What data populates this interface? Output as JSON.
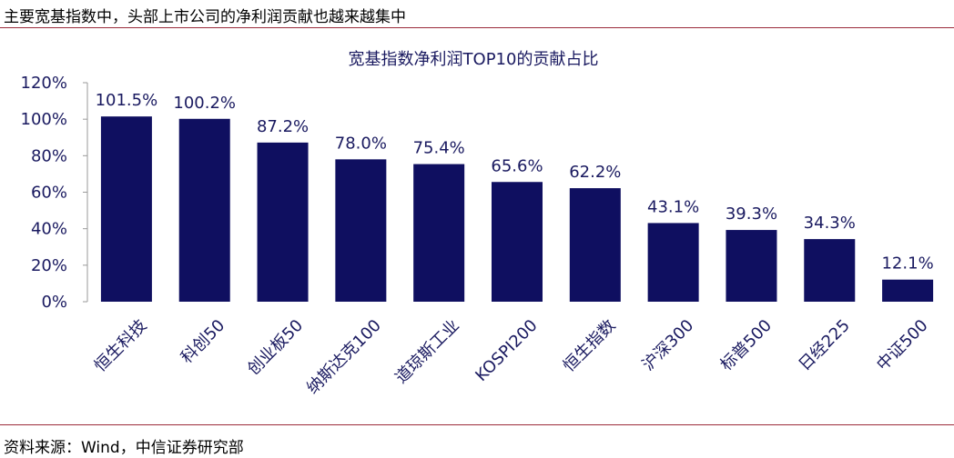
{
  "header": {
    "title": "主要宽基指数中，头部上市公司的净利润贡献也越来越集中"
  },
  "footer": {
    "source": "资料来源：Wind，中信证券研究部"
  },
  "colors": {
    "bar": "#0f0f60",
    "text": "#1a1a60",
    "rule": "#9b2b3a"
  },
  "chart_data": {
    "type": "bar",
    "title": "宽基指数净利润TOP10的贡献占比",
    "categories": [
      "恒生科技",
      "科创50",
      "创业板50",
      "纳斯达克100",
      "道琼斯工业",
      "KOSPI200",
      "恒生指数",
      "沪深300",
      "标普500",
      "日经225",
      "中证500"
    ],
    "values": [
      101.5,
      100.2,
      87.2,
      78.0,
      75.4,
      65.6,
      62.2,
      43.1,
      39.3,
      34.3,
      12.1
    ],
    "value_labels": [
      "101.5%",
      "100.2%",
      "87.2%",
      "78.0%",
      "75.4%",
      "65.6%",
      "62.2%",
      "43.1%",
      "39.3%",
      "34.3%",
      "12.1%"
    ],
    "yticks": [
      "0%",
      "20%",
      "40%",
      "60%",
      "80%",
      "100%",
      "120%"
    ],
    "ylim": [
      0,
      120
    ],
    "xlabel": "",
    "ylabel": "",
    "grid": false,
    "legend": "none"
  }
}
